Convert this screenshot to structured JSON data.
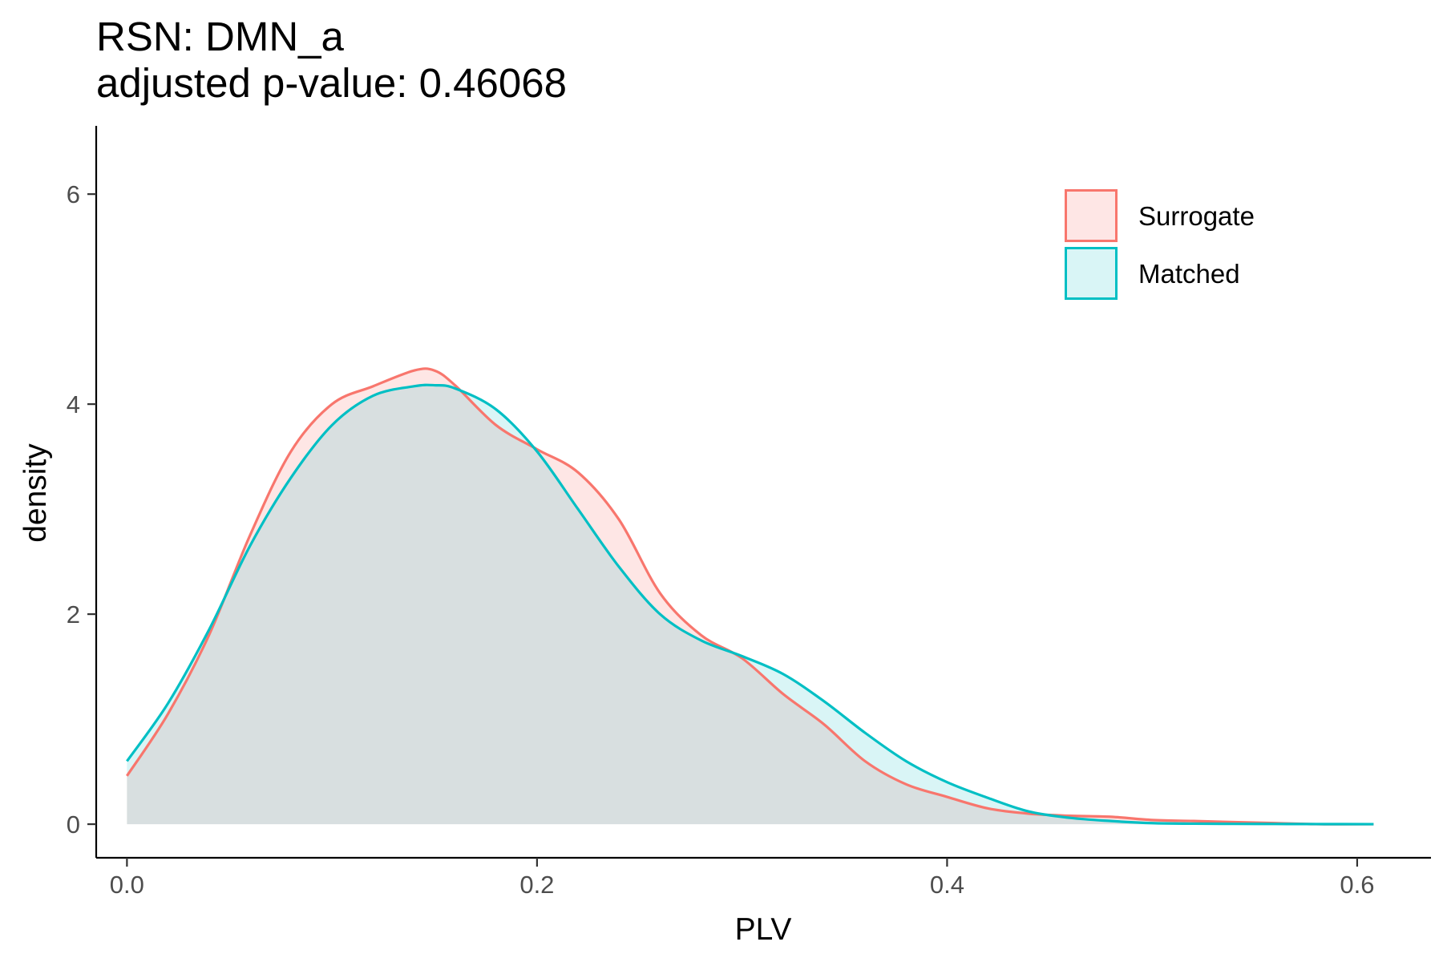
{
  "chart_data": {
    "type": "area",
    "title": "RSN: DMN_a",
    "subtitle": "adjusted p-value: 0.46068",
    "xlabel": "PLV",
    "ylabel": "density",
    "xlim": [
      -0.015,
      0.636
    ],
    "ylim": [
      -0.32,
      6.65
    ],
    "x_ticks": [
      0.0,
      0.2,
      0.4,
      0.6
    ],
    "x_tick_labels": [
      "0.0",
      "0.2",
      "0.4",
      "0.6"
    ],
    "y_ticks": [
      0,
      2,
      4,
      6
    ],
    "y_tick_labels": [
      "0",
      "2",
      "4",
      "6"
    ],
    "grid": false,
    "legend_position": "top-right",
    "series": [
      {
        "name": "Surrogate",
        "line_color": "#f8766d",
        "fill_color": "#f8766d",
        "fill_opacity": 0.18,
        "x": [
          0.0,
          0.02,
          0.04,
          0.06,
          0.08,
          0.1,
          0.12,
          0.14,
          0.15,
          0.16,
          0.18,
          0.2,
          0.22,
          0.24,
          0.26,
          0.28,
          0.3,
          0.32,
          0.34,
          0.36,
          0.38,
          0.4,
          0.42,
          0.44,
          0.46,
          0.48,
          0.5,
          0.52,
          0.54,
          0.56,
          0.58,
          0.608
        ],
        "y": [
          0.46,
          1.05,
          1.8,
          2.75,
          3.55,
          4.0,
          4.17,
          4.32,
          4.32,
          4.18,
          3.8,
          3.57,
          3.35,
          2.9,
          2.2,
          1.8,
          1.58,
          1.24,
          0.95,
          0.6,
          0.38,
          0.26,
          0.15,
          0.1,
          0.08,
          0.07,
          0.04,
          0.03,
          0.02,
          0.01,
          0.0,
          0.0
        ]
      },
      {
        "name": "Matched",
        "line_color": "#00bfc4",
        "fill_color": "#00bfc4",
        "fill_opacity": 0.15,
        "x": [
          0.0,
          0.02,
          0.04,
          0.06,
          0.08,
          0.1,
          0.12,
          0.14,
          0.15,
          0.16,
          0.18,
          0.2,
          0.22,
          0.24,
          0.26,
          0.28,
          0.3,
          0.32,
          0.34,
          0.36,
          0.38,
          0.4,
          0.42,
          0.44,
          0.46,
          0.48,
          0.5,
          0.52,
          0.54,
          0.56,
          0.58,
          0.608
        ],
        "y": [
          0.6,
          1.15,
          1.85,
          2.65,
          3.3,
          3.8,
          4.08,
          4.17,
          4.18,
          4.15,
          3.95,
          3.55,
          3.0,
          2.45,
          2.0,
          1.75,
          1.6,
          1.43,
          1.17,
          0.87,
          0.6,
          0.4,
          0.25,
          0.12,
          0.06,
          0.03,
          0.01,
          0.005,
          0.003,
          0.002,
          0.001,
          0.0
        ]
      }
    ]
  }
}
